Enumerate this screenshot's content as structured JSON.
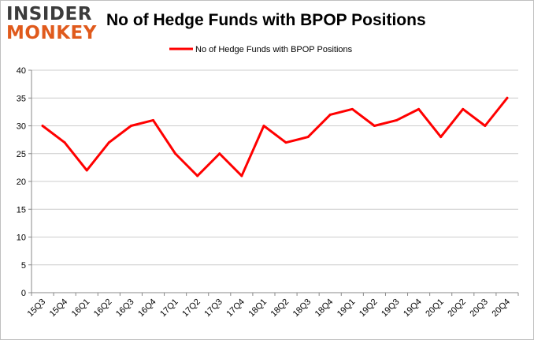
{
  "logo": {
    "line1": "INSIDER",
    "line2": "MONKEY"
  },
  "colors": {
    "series": "#ff0000",
    "grid": "#cccccc",
    "axis": "#888888",
    "logo_accent": "#e05a1c"
  },
  "chart_data": {
    "type": "line",
    "title": "No of Hedge Funds with BPOP Positions",
    "xlabel": "",
    "ylabel": "",
    "categories": [
      "15Q3",
      "15Q4",
      "16Q1",
      "16Q2",
      "16Q3",
      "16Q4",
      "17Q1",
      "17Q2",
      "17Q3",
      "17Q4",
      "18Q1",
      "18Q2",
      "18Q3",
      "18Q4",
      "19Q1",
      "19Q2",
      "19Q3",
      "19Q4",
      "20Q1",
      "20Q2",
      "20Q3",
      "20Q4"
    ],
    "series": [
      {
        "name": "No of Hedge Funds with BPOP Positions",
        "values": [
          30,
          27,
          22,
          27,
          30,
          31,
          25,
          21,
          25,
          21,
          30,
          27,
          28,
          32,
          33,
          30,
          31,
          33,
          28,
          33,
          30,
          35
        ]
      }
    ],
    "ylim": [
      0,
      40
    ],
    "yticks": [
      0,
      5,
      10,
      15,
      20,
      25,
      30,
      35,
      40
    ],
    "grid": true,
    "legend": "top-center"
  }
}
